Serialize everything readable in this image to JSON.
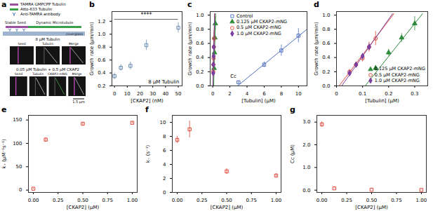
{
  "panel_a": {
    "title": "a",
    "legend": [
      {
        "label": "TAMRA GMPCPP Tubulin",
        "color": "#9b4f9e"
      },
      {
        "label": "Atto-633 Tubulin",
        "color": "#3aa14a"
      },
      {
        "label": "Anti-TAMRA antibody",
        "color": "#3c6fb0"
      }
    ],
    "schematic_labels": [
      "Stable Seed",
      "Dynamic Microtubule",
      "coverglass"
    ],
    "kymographs": [
      {
        "condition": "8 µM Tubulin",
        "channels": [
          "Seed",
          "Tubulin",
          "Merge"
        ]
      },
      {
        "condition": "0.05 µM Tubulin + 0.5 µM CKAP2",
        "channels": [
          "Seed",
          "Tubulin",
          "CKAP2-mNG",
          "Merge"
        ]
      }
    ],
    "scale_bar": "1.5 µm"
  },
  "chart_data": [
    {
      "title": "b",
      "type": "scatter",
      "x_label": "[CKAP2] (nM)",
      "y_label": "Growth rate (µm/min)",
      "xlim": [
        -2,
        53
      ],
      "xticks": [
        0,
        10,
        20,
        30,
        40,
        50
      ],
      "ylim": [
        0.2,
        1.35
      ],
      "yticks": [
        0.2,
        0.4,
        0.6,
        0.8,
        {
          "value": 1,
          "label": "1.0"
        },
        1.2
      ],
      "series": [
        {
          "x": [
            0,
            5,
            12.5,
            25,
            50
          ],
          "values": [
            0.35,
            0.48,
            0.51,
            0.83,
            1.1
          ],
          "errors": [
            0.05,
            0.05,
            0.06,
            0.08,
            0.08
          ],
          "color": "#6b8bb3",
          "marker": "open_square"
        }
      ],
      "annotations": [
        {
          "text": "****",
          "x": [
            0,
            50
          ]
        },
        {
          "text": "8 µM Tubulin"
        }
      ]
    },
    {
      "title": "c",
      "type": "scatter",
      "x_label": "[Tubulin] (µM)",
      "y_label": "Growth rate (µm/min)",
      "xlim": [
        -0.3,
        11
      ],
      "xticks": [
        0,
        2,
        4,
        6,
        8,
        10
      ],
      "ylim": [
        0,
        1.05
      ],
      "yticks": [
        {
          "value": 0,
          "label": "0.0"
        },
        0.2,
        0.4,
        0.6,
        0.8,
        {
          "value": 1,
          "label": "1.0"
        }
      ],
      "legend": "top",
      "series": [
        {
          "name": "Control",
          "x": [
            3,
            6,
            8,
            10
          ],
          "values": [
            0.05,
            0.3,
            0.5,
            0.71
          ],
          "errors": [
            0.02,
            0.04,
            0.08,
            0.1
          ],
          "color": "#4f6fc0",
          "marker": "open_square"
        },
        {
          "type": "line",
          "x": [
            2.9,
            11
          ],
          "values": [
            0,
            0.8
          ],
          "color": "#4f6fc0"
        },
        {
          "name": "0.125 µM CKAP2-mNG",
          "x": [
            0.15,
            0.2,
            0.25,
            0.3
          ],
          "values": [
            0.25,
            0.47,
            0.68,
            0.88
          ],
          "errors": [
            0.04,
            0.05,
            0.06,
            0.1
          ],
          "color": "#2e8b3a",
          "marker": "triangle"
        },
        {
          "type": "line",
          "x": [
            0.11,
            0.33
          ],
          "values": [
            0,
            1.02
          ],
          "color": "#2e8b3a"
        },
        {
          "name": "0.5 µM CKAP2-mNG",
          "x": [
            0.05,
            0.075,
            0.1,
            0.125,
            0.15
          ],
          "values": [
            0.2,
            0.3,
            0.39,
            0.55,
            0.67
          ],
          "errors": [
            0.03,
            0.04,
            0.05,
            0.07,
            0.1
          ],
          "color": "#e0473a",
          "marker": "open_circle"
        },
        {
          "type": "line",
          "x": [
            0.01,
            0.22
          ],
          "values": [
            0,
            1.02
          ],
          "color": "#e0473a"
        },
        {
          "name": "1.0 µM CKAP2-mNG",
          "x": [
            0.05,
            0.075,
            0.1,
            0.125
          ],
          "values": [
            0.18,
            0.3,
            0.42,
            0.55
          ],
          "errors": [
            0.02,
            0.03,
            0.04,
            0.05
          ],
          "color": "#7b3f9e",
          "marker": "diamond"
        },
        {
          "type": "line",
          "x": [
            0.02,
            0.215
          ],
          "values": [
            0,
            1.02
          ],
          "color": "#7b3f9e"
        }
      ],
      "annotations": [
        {
          "text": "Cc",
          "x": 2.9,
          "y": 0.05
        }
      ]
    },
    {
      "title": "d",
      "type": "scatter",
      "x_label": "[Tubulin] (µM)",
      "y_label": "Growth rate (µm/min)",
      "xlim": [
        0,
        0.35
      ],
      "xticks": [
        0,
        0.1,
        0.2,
        0.3
      ],
      "ylim": [
        0,
        1.05
      ],
      "yticks": [
        {
          "value": 0,
          "label": "0.0"
        },
        0.2,
        0.4,
        0.6,
        0.8,
        {
          "value": 1,
          "label": "1.0"
        }
      ],
      "legend": "lower-right",
      "series": [
        {
          "name": "0.125 µM CKAP2-mNG",
          "x": [
            0.15,
            0.2,
            0.25,
            0.3
          ],
          "values": [
            0.25,
            0.47,
            0.68,
            0.88
          ],
          "errors": [
            0.04,
            0.05,
            0.06,
            0.1
          ],
          "color": "#2e8b3a",
          "marker": "triangle"
        },
        {
          "type": "line",
          "x": [
            0.11,
            0.33
          ],
          "values": [
            0,
            1.02
          ],
          "color": "#2e8b3a"
        },
        {
          "name": "0.5 µM CKAP2-mNG",
          "x": [
            0.05,
            0.075,
            0.1,
            0.125,
            0.15
          ],
          "values": [
            0.2,
            0.3,
            0.39,
            0.55,
            0.67
          ],
          "errors": [
            0.03,
            0.04,
            0.05,
            0.07,
            0.1
          ],
          "color": "#e0473a",
          "marker": "open_circle"
        },
        {
          "type": "line",
          "x": [
            0.01,
            0.22
          ],
          "values": [
            0,
            1.02
          ],
          "color": "#e0473a"
        },
        {
          "name": "1.0 µM CKAP2-mNG",
          "x": [
            0.05,
            0.075,
            0.1,
            0.125
          ],
          "values": [
            0.18,
            0.3,
            0.42,
            0.55
          ],
          "errors": [
            0.02,
            0.03,
            0.04,
            0.05
          ],
          "color": "#7b3f9e",
          "marker": "diamond"
        },
        {
          "type": "line",
          "x": [
            0.02,
            0.215
          ],
          "values": [
            0,
            1.02
          ],
          "color": "#7b3f9e"
        }
      ]
    },
    {
      "title": "e",
      "type": "scatter",
      "x_label": "[CKAP2] (µM)",
      "y_label": "k₊ (µM⁻¹s⁻¹)",
      "xlim": [
        -0.05,
        1.05
      ],
      "xticks": [
        {
          "value": 0,
          "label": "0.00"
        },
        {
          "value": 0.25,
          "label": "0.25"
        },
        {
          "value": 0.5,
          "label": "0.50"
        },
        {
          "value": 0.75,
          "label": "0.75"
        },
        {
          "value": 1,
          "label": "1.00"
        }
      ],
      "ylim": [
        -5,
        160
      ],
      "yticks": [
        0,
        50,
        100,
        150
      ],
      "series": [
        {
          "x": [
            0,
            0.125,
            0.5,
            1
          ],
          "values": [
            3,
            108,
            142,
            144
          ],
          "errors": [
            1,
            4,
            3,
            2
          ],
          "color": "#e0473a",
          "marker": "open_square"
        }
      ]
    },
    {
      "title": "f",
      "type": "scatter",
      "x_label": "[CKAP2] (µM)",
      "y_label": "k₋ (s⁻¹)",
      "xlim": [
        -0.05,
        1.05
      ],
      "xticks": [
        {
          "value": 0,
          "label": "0.00"
        },
        {
          "value": 0.25,
          "label": "0.25"
        },
        {
          "value": 0.5,
          "label": "0.50"
        },
        {
          "value": 0.75,
          "label": "0.75"
        },
        {
          "value": 1,
          "label": "1.00"
        }
      ],
      "ylim": [
        0,
        11
      ],
      "yticks": [
        0,
        2,
        4,
        6,
        8,
        10
      ],
      "series": [
        {
          "x": [
            0,
            0.125,
            0.5,
            1
          ],
          "values": [
            7.5,
            9,
            3,
            2.4
          ],
          "errors": [
            0.5,
            1.2,
            0.4,
            0.3
          ],
          "color": "#e0473a",
          "marker": "open_square"
        }
      ]
    },
    {
      "title": "g",
      "type": "scatter",
      "x_label": "[CKAP2] (µM)",
      "y_label": "Cc (µM)",
      "xlim": [
        -0.05,
        1.05
      ],
      "xticks": [
        {
          "value": 0,
          "label": "0.00"
        },
        {
          "value": 0.25,
          "label": "0.25"
        },
        {
          "value": 0.5,
          "label": "0.50"
        },
        {
          "value": 0.75,
          "label": "0.75"
        },
        {
          "value": 1,
          "label": "1.00"
        }
      ],
      "ylim": [
        -0.1,
        3.3
      ],
      "yticks": [
        {
          "value": 0,
          "label": "0.0"
        },
        {
          "value": 1,
          "label": "1.0"
        },
        {
          "value": 2,
          "label": "2.0"
        },
        {
          "value": 3,
          "label": "3.0"
        }
      ],
      "series": [
        {
          "x": [
            0,
            0.125,
            0.5,
            1
          ],
          "values": [
            2.9,
            0.08,
            0.02,
            0.01
          ],
          "errors": [
            0.12,
            0.02,
            0.01,
            0.01
          ],
          "color": "#e0473a",
          "marker": "open_square"
        }
      ]
    }
  ]
}
